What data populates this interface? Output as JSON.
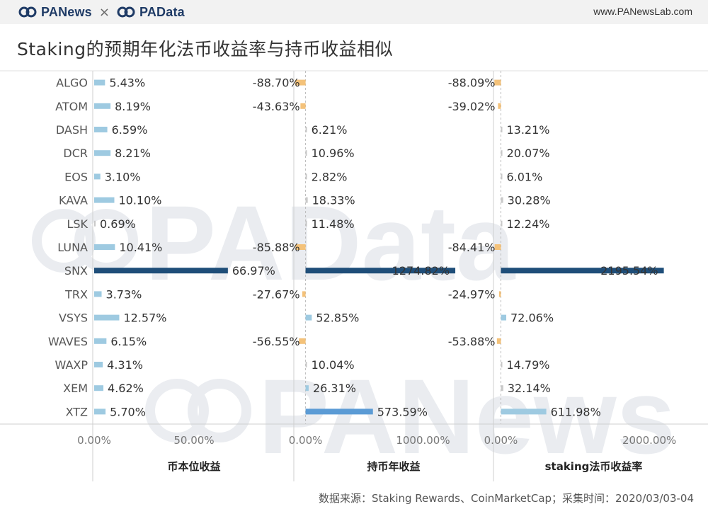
{
  "header": {
    "logo_left": "PANews",
    "separator": "×",
    "logo_right": "PAData",
    "site_url": "www.PANewsLab.com"
  },
  "title": "Staking的预期年化法币收益率与持币收益相似",
  "source": "数据来源：Staking Rewards、CoinMarketCap；采集时间：2020/03/03-04",
  "watermarks": {
    "top": "PAData",
    "bottom": "PANews"
  },
  "colors": {
    "accent_dark": "#1f4e79",
    "accent_mid": "#5b9bd5",
    "accent_light": "#9ecae1",
    "negative": "#f4c27a",
    "neutral_small": "#c9c9c9"
  },
  "chart_data": {
    "type": "bar",
    "orientation": "horizontal",
    "categories": [
      "ALGO",
      "ATOM",
      "DASH",
      "DCR",
      "EOS",
      "KAVA",
      "LSK",
      "LUNA",
      "SNX",
      "TRX",
      "VSYS",
      "WAVES",
      "WAXP",
      "XEM",
      "XTZ"
    ],
    "panels": [
      {
        "name": "币本位收益",
        "values": [
          5.43,
          8.19,
          6.59,
          8.21,
          3.1,
          10.1,
          0.69,
          10.41,
          66.97,
          3.73,
          12.57,
          6.15,
          4.31,
          4.62,
          5.7
        ],
        "labels": [
          "5.43%",
          "8.19%",
          "6.59%",
          "8.21%",
          "3.10%",
          "10.10%",
          "0.69%",
          "10.41%",
          "66.97%",
          "3.73%",
          "12.57%",
          "6.15%",
          "4.31%",
          "4.62%",
          "5.70%"
        ],
        "ticks": [
          0,
          50
        ],
        "tick_labels": [
          "0.00%",
          "50.00%"
        ],
        "xlim": [
          0,
          100
        ]
      },
      {
        "name": "持币年收益",
        "values": [
          -88.7,
          -43.63,
          6.21,
          10.96,
          2.82,
          18.33,
          11.48,
          -85.88,
          1274.82,
          -27.67,
          52.85,
          -56.55,
          10.04,
          26.31,
          573.59
        ],
        "labels": [
          "-88.70%",
          "-43.63%",
          "6.21%",
          "10.96%",
          "2.82%",
          "18.33%",
          "11.48%",
          "-85.88%",
          "1274.82%",
          "-27.67%",
          "52.85%",
          "-56.55%",
          "10.04%",
          "26.31%",
          "573.59%"
        ],
        "ticks": [
          0,
          1000
        ],
        "tick_labels": [
          "0.00%",
          "1000.00%"
        ],
        "xlim": [
          -100,
          1600
        ]
      },
      {
        "name": "staking法币收益率",
        "values": [
          -88.09,
          -39.02,
          13.21,
          20.07,
          6.01,
          30.28,
          12.24,
          -84.41,
          2195.54,
          -24.97,
          72.06,
          -53.88,
          14.79,
          32.14,
          611.98
        ],
        "labels": [
          "-88.09%",
          "-39.02%",
          "13.21%",
          "20.07%",
          "6.01%",
          "30.28%",
          "12.24%",
          "-84.41%",
          "2195.54%",
          "-24.97%",
          "72.06%",
          "-53.88%",
          "14.79%",
          "32.14%",
          "611.98%"
        ],
        "ticks": [
          0,
          2000
        ],
        "tick_labels": [
          "0.00%",
          "2000.00%"
        ],
        "xlim": [
          -100,
          2600
        ]
      }
    ]
  }
}
